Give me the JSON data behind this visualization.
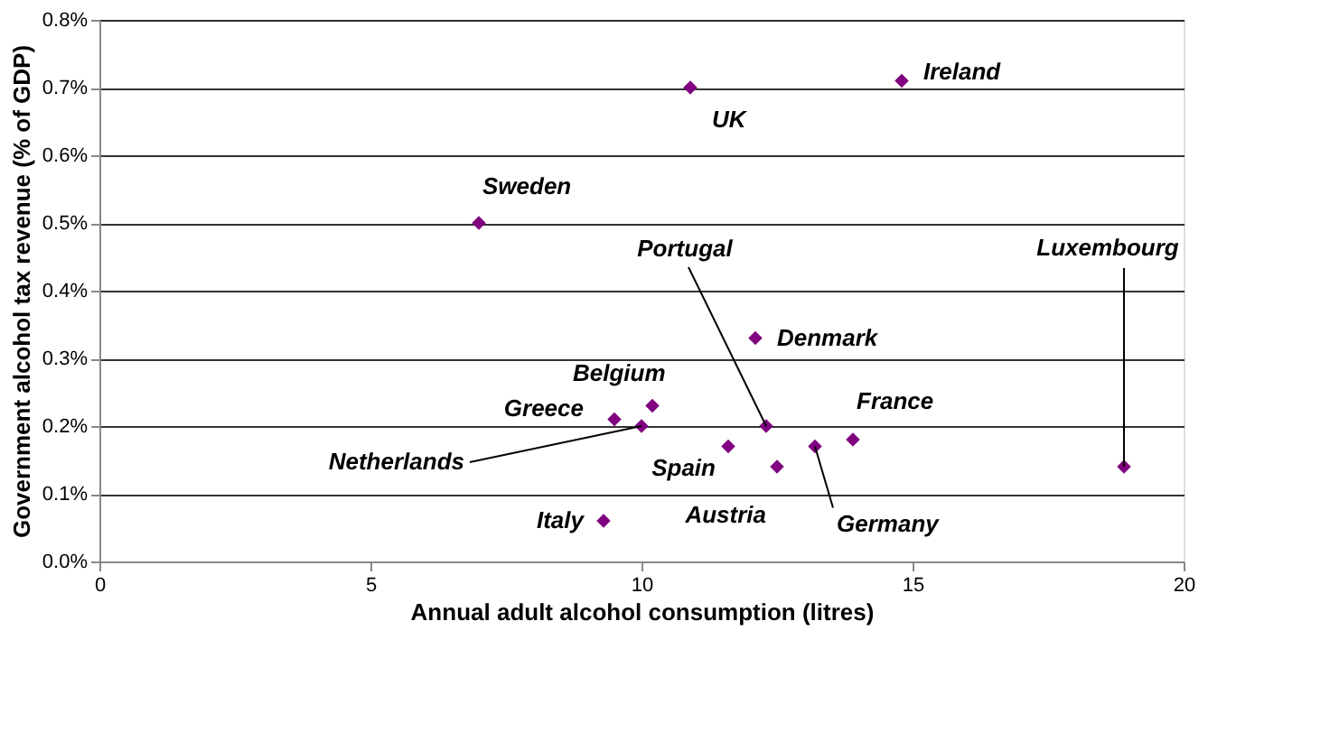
{
  "chart_data": {
    "type": "scatter",
    "xlabel": "Annual adult alcohol consumption (litres)",
    "ylabel": "Government alcohol tax revenue (% of GDP)",
    "x": [
      14.8,
      10.9,
      7.0,
      12.1,
      10.2,
      9.5,
      10.0,
      12.3,
      13.9,
      11.6,
      13.2,
      12.5,
      18.9,
      9.3
    ],
    "series": [
      {
        "color": "#800080",
        "values": [
          0.71,
          0.7,
          0.5,
          0.33,
          0.23,
          0.21,
          0.2,
          0.2,
          0.18,
          0.17,
          0.17,
          0.14,
          0.14,
          0.06
        ]
      }
    ],
    "xlim": [
      0,
      20
    ],
    "xticks": [
      0,
      5,
      10,
      15,
      20
    ],
    "ylim": [
      0,
      0.8
    ],
    "yticks": [
      {
        "value": 0,
        "label": "0.0%"
      },
      {
        "value": 0.1,
        "label": "0.1%"
      },
      {
        "value": 0.2,
        "label": "0.2%"
      },
      {
        "value": 0.3,
        "label": "0.3%"
      },
      {
        "value": 0.4,
        "label": "0.4%"
      },
      {
        "value": 0.5,
        "label": "0.5%"
      },
      {
        "value": 0.6,
        "label": "0.6%"
      },
      {
        "value": 0.7,
        "label": "0.7%"
      },
      {
        "value": 0.8,
        "label": "0.8%"
      }
    ],
    "grid": "y",
    "marker": "diamond",
    "annotations": [
      {
        "text": "Ireland",
        "x": 14.8,
        "y": 0.71
      },
      {
        "text": "UK",
        "x": 10.9,
        "y": 0.7
      },
      {
        "text": "Sweden",
        "x": 7.0,
        "y": 0.5
      },
      {
        "text": "Denmark",
        "x": 12.1,
        "y": 0.33
      },
      {
        "text": "Belgium",
        "x": 10.2,
        "y": 0.23
      },
      {
        "text": "Greece",
        "x": 9.5,
        "y": 0.21
      },
      {
        "text": "Netherlands",
        "x": 10.0,
        "y": 0.2
      },
      {
        "text": "Portugal",
        "x": 12.3,
        "y": 0.2
      },
      {
        "text": "France",
        "x": 13.9,
        "y": 0.18
      },
      {
        "text": "Spain",
        "x": 11.6,
        "y": 0.17
      },
      {
        "text": "Germany",
        "x": 13.2,
        "y": 0.17
      },
      {
        "text": "Austria",
        "x": 12.5,
        "y": 0.14
      },
      {
        "text": "Luxembourg",
        "x": 18.9,
        "y": 0.14
      },
      {
        "text": "Italy",
        "x": 9.3,
        "y": 0.06
      }
    ]
  }
}
